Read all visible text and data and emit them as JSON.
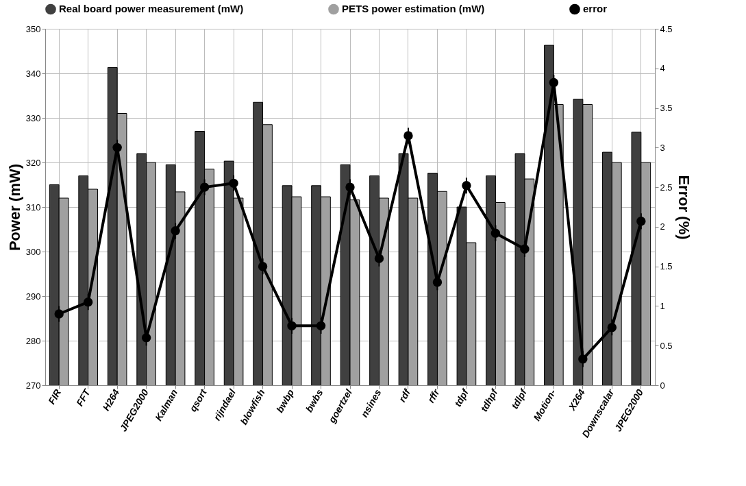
{
  "chart_data": {
    "type": "bar",
    "ylabel": "Power (mW)",
    "y2label": "Error (%)",
    "categories": [
      "FIR",
      "FFT",
      "H264",
      "JPEG2000",
      "Kalman",
      "qsort",
      "rijndael",
      "blowfish",
      "bwbp",
      "bwbs",
      "goertzel",
      "nsines",
      "rdf",
      "rffr",
      "tdpf",
      "tdhpf",
      "tdlpf",
      "Motion-",
      "X264",
      "Downscalar",
      "JPEG2000"
    ],
    "series": [
      {
        "name": "Real board power measurement (mW)",
        "color": "#404040",
        "values": [
          315,
          317,
          341.3,
          322,
          319.5,
          327,
          320.3,
          333.5,
          314.8,
          314.8,
          319.5,
          317,
          322,
          317.6,
          310,
          317,
          322,
          346.3,
          334.2,
          322.3,
          326.8
        ]
      },
      {
        "name": "PETS power estimation (mW)",
        "color": "#a0a0a0",
        "values": [
          312,
          314,
          331,
          320,
          313.4,
          318.5,
          312,
          328.5,
          312.3,
          312.3,
          311.6,
          312,
          312,
          313.5,
          302,
          311,
          316.3,
          333,
          333,
          320,
          320
        ]
      },
      {
        "name": "error",
        "type": "line",
        "axis": "y2",
        "color": "#000000",
        "marker": "circle",
        "errors": [
          0.1,
          0.1,
          0.1,
          0.1,
          0.1,
          0.1,
          0.1,
          0.1,
          0.1,
          0.1,
          0.1,
          0.1,
          0.1,
          0.1,
          0.1,
          0.1,
          0.1,
          0.1,
          0.1,
          0.1,
          0.1
        ],
        "values": [
          0.9,
          1.05,
          3.0,
          0.6,
          1.95,
          2.5,
          2.55,
          1.5,
          0.75,
          0.75,
          2.5,
          1.6,
          3.15,
          1.3,
          2.52,
          1.92,
          1.72,
          3.82,
          0.33,
          0.73,
          2.07
        ]
      }
    ],
    "ylim": [
      270,
      350
    ],
    "yticks": [
      270,
      280,
      290,
      300,
      310,
      320,
      330,
      340,
      350
    ],
    "y2lim": [
      0,
      4.5
    ],
    "y2ticks": [
      0,
      0.5,
      1,
      1.5,
      2,
      2.5,
      3,
      3.5,
      4,
      4.5
    ],
    "grid": true,
    "legend": "top"
  }
}
